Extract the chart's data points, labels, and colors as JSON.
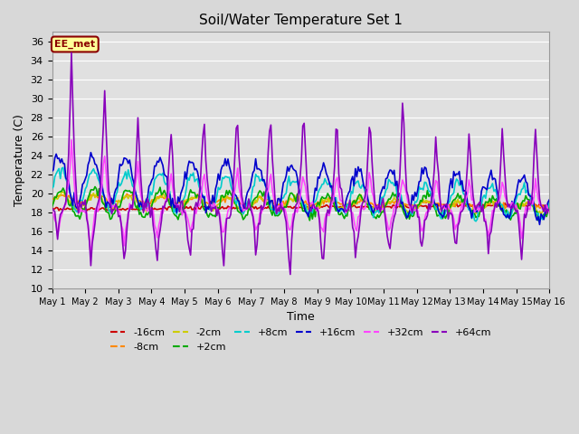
{
  "title": "Soil/Water Temperature Set 1",
  "xlabel": "Time",
  "ylabel": "Temperature (C)",
  "ylim": [
    10,
    37
  ],
  "yticks": [
    10,
    12,
    14,
    16,
    18,
    20,
    22,
    24,
    26,
    28,
    30,
    32,
    34,
    36
  ],
  "annotation_text": "EE_met",
  "annotation_bg": "#ffff99",
  "annotation_border": "#8B0000",
  "colors": {
    "-16cm": "#cc0000",
    "-8cm": "#ff8800",
    "-2cm": "#cccc00",
    "+2cm": "#00aa00",
    "+8cm": "#00cccc",
    "+16cm": "#0000cc",
    "+32cm": "#ff44ff",
    "+64cm": "#8800bb"
  },
  "bg_color": "#e0e0e0",
  "fig_bg": "#d8d8d8"
}
